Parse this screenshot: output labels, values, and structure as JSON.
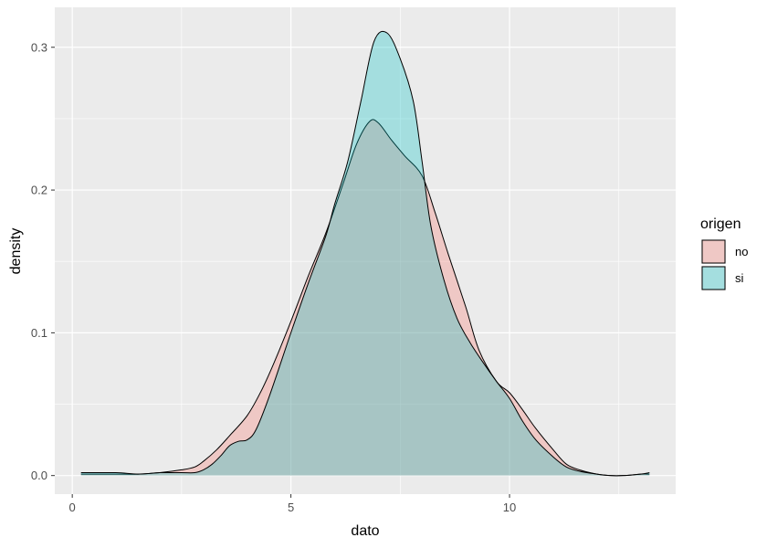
{
  "chart_data": {
    "type": "area",
    "xlabel": "dato",
    "ylabel": "density",
    "xlim": [
      -0.4,
      13.8
    ],
    "ylim": [
      -0.013,
      0.328
    ],
    "x_ticks": [
      0,
      5,
      10
    ],
    "x_tick_labels": [
      "0",
      "5",
      "10"
    ],
    "x_minor": [
      2.5,
      7.5,
      12.5
    ],
    "y_ticks": [
      0.0,
      0.1,
      0.2,
      0.3
    ],
    "y_tick_labels": [
      "0.0",
      "0.1",
      "0.2",
      "0.3"
    ],
    "y_minor": [
      0.05,
      0.15,
      0.25
    ],
    "grid": true,
    "legend": {
      "title": "origen",
      "position": "right"
    },
    "colors": {
      "panel": "#EBEBEB",
      "grid": "#FFFFFF",
      "no": "#F8766D",
      "si": "#00BFC4",
      "outline": "#000000"
    },
    "series": [
      {
        "name": "no",
        "x": [
          0.2,
          1.0,
          1.5,
          2.0,
          2.5,
          2.8,
          3.0,
          3.3,
          3.6,
          4.0,
          4.3,
          4.6,
          5.0,
          5.4,
          5.8,
          6.2,
          6.5,
          6.8,
          7.0,
          7.3,
          7.6,
          8.0,
          8.3,
          8.6,
          9.0,
          9.3,
          9.7,
          10.0,
          10.3,
          10.6,
          11.0,
          11.3,
          11.6,
          12.0,
          12.3,
          12.6,
          13.0,
          13.2
        ],
        "y": [
          0.001,
          0.001,
          0.001,
          0.002,
          0.004,
          0.006,
          0.01,
          0.018,
          0.028,
          0.042,
          0.058,
          0.078,
          0.108,
          0.14,
          0.17,
          0.205,
          0.232,
          0.248,
          0.247,
          0.235,
          0.224,
          0.21,
          0.184,
          0.155,
          0.118,
          0.088,
          0.066,
          0.058,
          0.046,
          0.033,
          0.018,
          0.008,
          0.004,
          0.001,
          0.0,
          0.0,
          0.001,
          0.001
        ]
      },
      {
        "name": "si",
        "x": [
          0.2,
          1.0,
          1.5,
          2.0,
          2.5,
          2.8,
          3.0,
          3.2,
          3.4,
          3.6,
          3.8,
          4.0,
          4.2,
          4.5,
          5.0,
          5.4,
          5.8,
          6.0,
          6.3,
          6.6,
          6.9,
          7.2,
          7.5,
          7.8,
          8.0,
          8.2,
          8.5,
          8.8,
          9.1,
          9.4,
          9.7,
          10.0,
          10.3,
          10.6,
          11.0,
          11.3,
          11.6,
          12.0,
          12.3,
          12.6,
          13.0,
          13.2
        ],
        "y": [
          0.002,
          0.002,
          0.001,
          0.002,
          0.002,
          0.002,
          0.004,
          0.008,
          0.014,
          0.021,
          0.024,
          0.025,
          0.032,
          0.055,
          0.1,
          0.135,
          0.168,
          0.19,
          0.22,
          0.262,
          0.304,
          0.31,
          0.292,
          0.262,
          0.22,
          0.175,
          0.137,
          0.11,
          0.093,
          0.079,
          0.066,
          0.054,
          0.038,
          0.025,
          0.013,
          0.006,
          0.003,
          0.001,
          0.0,
          0.0,
          0.001,
          0.002
        ]
      }
    ]
  }
}
